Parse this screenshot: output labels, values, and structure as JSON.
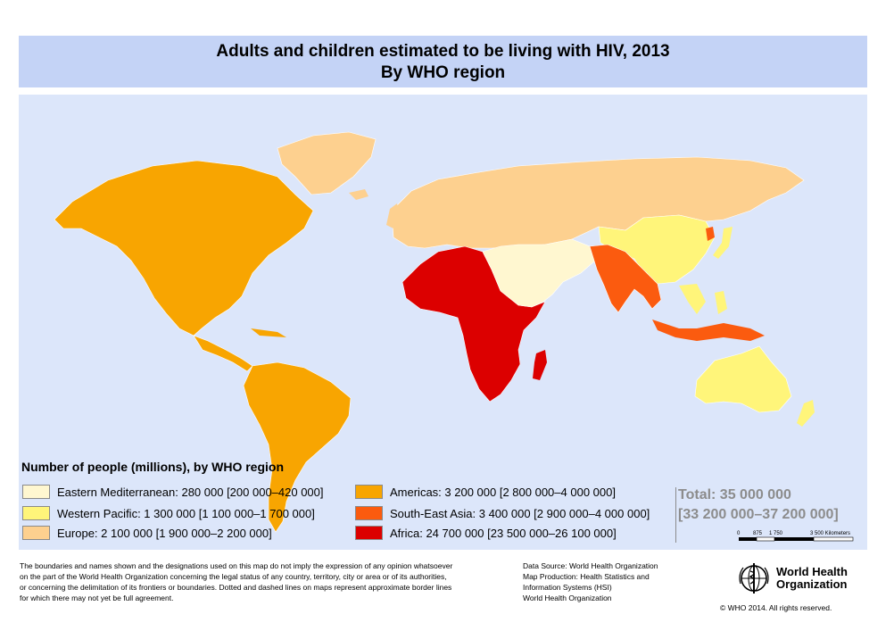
{
  "title": {
    "line1": "Adults and children estimated to be living with HIV, 2013",
    "line2": "By WHO region"
  },
  "colors": {
    "eastern_mediterranean": "#fff7d0",
    "western_pacific": "#fff57a",
    "europe": "#fdd08f",
    "americas": "#f8a501",
    "south_east_asia": "#fb5b0f",
    "africa": "#dc0000",
    "title_bg": "#c4d3f6",
    "map_bg": "#dce6fa",
    "total_text": "#8c8c8c"
  },
  "legend": {
    "title": "Number of people (millions), by WHO region",
    "items": [
      {
        "label": "Eastern Mediterranean: 280 000 [200 000–420 000]",
        "color": "#fff7d0"
      },
      {
        "label": "Western Pacific: 1 300 000 [1 100 000–1 700 000]",
        "color": "#fff57a"
      },
      {
        "label": "Europe: 2 100 000 [1 900 000–2 200 000]",
        "color": "#fdd08f"
      },
      {
        "label": "Americas: 3 200 000 [2 800 000–4 000 000]",
        "color": "#f8a501"
      },
      {
        "label": "South-East Asia: 3 400 000 [2 900 000–4 000 000]",
        "color": "#fb5b0f"
      },
      {
        "label": "Africa: 24 700 000 [23 500 000–26 100 000]",
        "color": "#dc0000"
      }
    ]
  },
  "total": {
    "line1": "Total: 35 000 000",
    "line2": "[33 200 000–37 200 000]"
  },
  "scale_bar": {
    "ticks": [
      "0",
      "875",
      "1 750",
      "3 500 Kilometers"
    ]
  },
  "disclaimer": [
    "The boundaries and names shown and the designations used on this map do not imply the expression of any opinion whatsoever",
    "on the part of the World Health Organization concerning the legal status of any country, territory, city or area or of its authorities,",
    "or concerning the delimitation of its frontiers or boundaries. Dotted and dashed lines on maps represent approximate border lines",
    "for which there may not yet be full agreement."
  ],
  "source": [
    "Data Source: World Health Organization",
    "Map Production: Health Statistics and",
    "Information Systems (HSI)",
    "World Health Organization"
  ],
  "who_logo": {
    "icon": "who-emblem-icon",
    "line1": "World Health",
    "line2": "Organization"
  },
  "copyright": "© WHO 2014. All rights reserved."
}
